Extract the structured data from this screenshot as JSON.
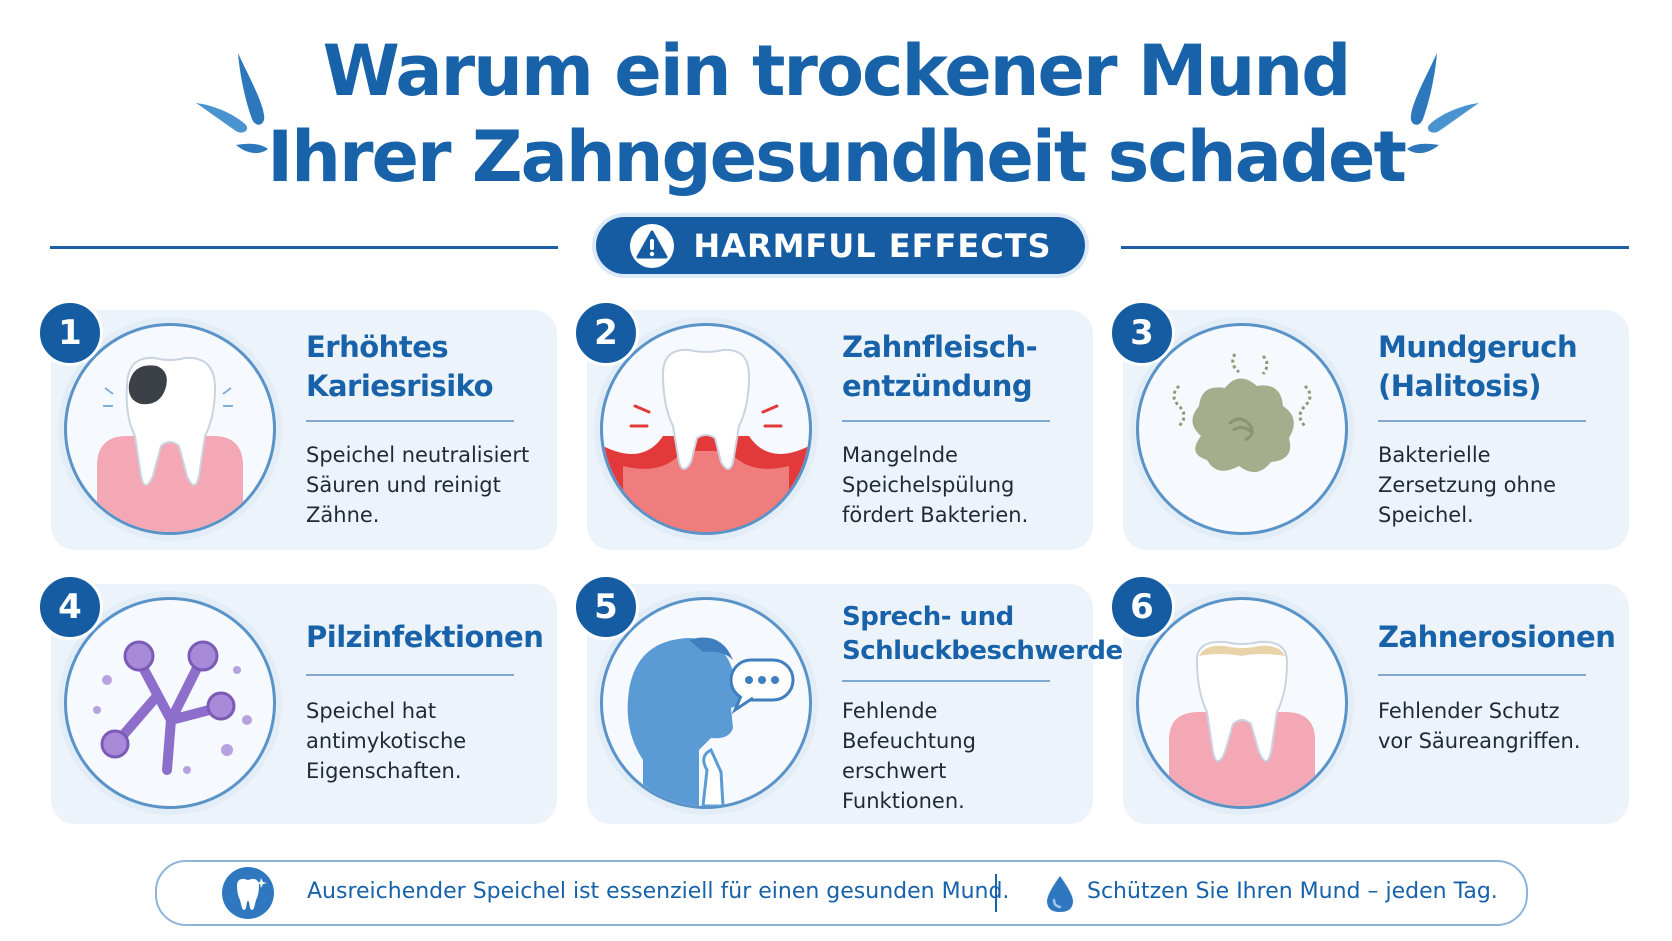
{
  "header": {
    "title_line1": "Warum ein trockener Mund",
    "title_line2": "Ihrer Zahngesundheit schadet",
    "badge_label": "HARMFUL EFFECTS",
    "badge_icon": "warning-icon"
  },
  "cards": [
    {
      "number": "1",
      "title_line1": "Erhöhtes",
      "title_line2": "Kariesrisiko",
      "desc": [
        "Speichel neutralisiert",
        "Säuren und reinigt",
        "Zähne."
      ],
      "icon": "tooth-caries-icon"
    },
    {
      "number": "2",
      "title_line1": "Zahnfleisch-",
      "title_line2": "entzündung",
      "desc": [
        "Mangelnde",
        "Speichelspülung",
        "fördert Bakterien."
      ],
      "icon": "inflamed-gum-icon"
    },
    {
      "number": "3",
      "title_line1": "Mundgeruch",
      "title_line2": "(Halitosis)",
      "desc": [
        "Bakterielle",
        "Zersetzung ohne",
        "Speichel."
      ],
      "icon": "odor-cloud-icon"
    },
    {
      "number": "4",
      "title_line1": "Pilzinfektionen",
      "title_line2": "",
      "desc": [
        "Speichel hat",
        "antimykotische",
        "Eigenschaften."
      ],
      "icon": "fungus-icon"
    },
    {
      "number": "5",
      "title_line1": "Sprech- und",
      "title_line2": "Schluckbeschwerden",
      "desc": [
        "Fehlende",
        "Befeuchtung",
        "erschwert",
        "Funktionen."
      ],
      "icon": "speaking-person-icon"
    },
    {
      "number": "6",
      "title_line1": "Zahnerosionen",
      "title_line2": "",
      "desc": [
        "Fehlender Schutz",
        "vor Säureangriffen."
      ],
      "icon": "eroded-tooth-icon"
    }
  ],
  "footer": {
    "left_text": "Ausreichender Speichel ist essenziell für einen gesunden Mund.",
    "left_icon": "tooth-badge-icon",
    "right_text": "Schützen Sie Ihren Mund – jeden Tag.",
    "right_icon": "droplet-icon"
  },
  "colors": {
    "brand_blue": "#155ca3",
    "title_blue": "#1762a8",
    "card_bg": "#edf3fa",
    "gum_red": "#e23a3a",
    "gum_pink": "#f4a7b4"
  }
}
